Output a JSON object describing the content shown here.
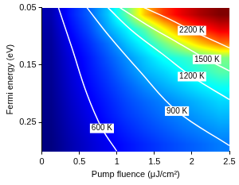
{
  "chart_data": {
    "type": "heatmap",
    "x_label": "Pump fluence (μJ/cm²)",
    "y_label": "Fermi energy (eV)",
    "xlim": [
      0,
      2.5
    ],
    "xticks": [
      0,
      0.5,
      1,
      1.5,
      2,
      2.5
    ],
    "ylim": [
      0.3,
      0.05
    ],
    "yticks": [
      0.05,
      0.15,
      0.25
    ],
    "grid": false,
    "cells": {
      "x": [
        0.125,
        0.375,
        0.625,
        0.875,
        1.125,
        1.375,
        1.625,
        1.875,
        2.125,
        2.375
      ],
      "y": [
        0.0625,
        0.0875,
        0.1125,
        0.1375,
        0.1625,
        0.1875,
        0.2125,
        0.2375,
        0.2625,
        0.2875
      ],
      "values": [
        [
          450,
          700,
          880,
          1130,
          1500,
          2050,
          2400,
          2600,
          2750,
          2850
        ],
        [
          420,
          650,
          820,
          1050,
          1250,
          1500,
          1900,
          2250,
          2450,
          2600
        ],
        [
          400,
          600,
          750,
          920,
          1120,
          1300,
          1550,
          1800,
          2050,
          2250
        ],
        [
          390,
          560,
          700,
          850,
          1000,
          1150,
          1300,
          1380,
          1480,
          1580
        ],
        [
          380,
          540,
          680,
          800,
          940,
          1080,
          1170,
          1280,
          1380,
          1480
        ],
        [
          370,
          520,
          650,
          760,
          870,
          980,
          1070,
          1150,
          1230,
          1300
        ],
        [
          360,
          500,
          620,
          720,
          820,
          900,
          970,
          1040,
          1110,
          1180
        ],
        [
          350,
          480,
          590,
          690,
          780,
          850,
          920,
          980,
          1040,
          1100
        ],
        [
          340,
          460,
          560,
          650,
          730,
          800,
          860,
          920,
          970,
          1020
        ],
        [
          330,
          440,
          530,
          610,
          680,
          740,
          800,
          850,
          900,
          950
        ]
      ]
    },
    "series": [
      {
        "name": "600 K",
        "color": "#ffffff",
        "x": [
          0.22,
          0.4,
          0.6,
          0.8,
          1.0
        ],
        "values": [
          0.05,
          0.12,
          0.2,
          0.26,
          0.3
        ]
      },
      {
        "name": "900 K",
        "color": "#ffffff",
        "x": [
          0.6,
          0.9,
          1.3,
          1.8,
          2.5
        ],
        "values": [
          0.05,
          0.1,
          0.16,
          0.23,
          0.29
        ]
      },
      {
        "name": "1200 K",
        "color": "#ffffff",
        "x": [
          0.88,
          1.2,
          1.6,
          2.0,
          2.5
        ],
        "values": [
          0.05,
          0.09,
          0.13,
          0.17,
          0.21
        ]
      },
      {
        "name": "1500 K",
        "color": "#ffffff",
        "x": [
          1.04,
          1.4,
          1.8,
          2.2,
          2.5
        ],
        "values": [
          0.05,
          0.08,
          0.11,
          0.14,
          0.16
        ]
      },
      {
        "name": "2200 K",
        "color": "#ffffff",
        "x": [
          1.36,
          1.7,
          2.0,
          2.5
        ],
        "values": [
          0.05,
          0.07,
          0.09,
          0.12
        ]
      }
    ]
  }
}
